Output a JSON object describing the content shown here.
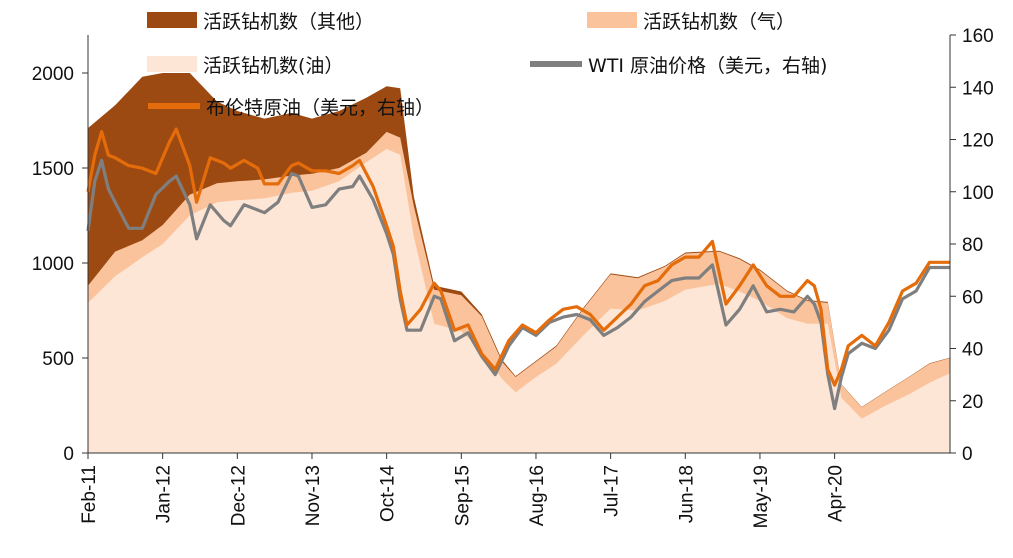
{
  "chart_data": {
    "type": "area",
    "title": "",
    "xlabel": "",
    "ylabel_left": "",
    "ylabel_right": "",
    "left_ylim": [
      0,
      2200
    ],
    "left_yticks": [
      0,
      500,
      1000,
      1500,
      2000
    ],
    "right_ylim": [
      0,
      160
    ],
    "right_yticks": [
      0,
      20,
      40,
      60,
      80,
      100,
      120,
      140,
      160
    ],
    "x_range": [
      "2011-02",
      "2021-09"
    ],
    "x_ticks": [
      {
        "date": "2011-02",
        "label": "Feb-11"
      },
      {
        "date": "2012-01",
        "label": "Jan-12"
      },
      {
        "date": "2012-12",
        "label": "Dec-12"
      },
      {
        "date": "2013-11",
        "label": "Nov-13"
      },
      {
        "date": "2014-10",
        "label": "Oct-14"
      },
      {
        "date": "2015-09",
        "label": "Sep-15"
      },
      {
        "date": "2016-08",
        "label": "Aug-16"
      },
      {
        "date": "2017-07",
        "label": "Jul-17"
      },
      {
        "date": "2018-06",
        "label": "Jun-18"
      },
      {
        "date": "2019-05",
        "label": "May-19"
      },
      {
        "date": "2020-04",
        "label": "Apr-20"
      }
    ],
    "grid": false,
    "legend_position": "top",
    "stacked_area_series": [
      {
        "name": "活跃钻机数(油)",
        "color": "#FDE6D6",
        "axis": "left",
        "points": [
          [
            "2011-02",
            790
          ],
          [
            "2011-06",
            930
          ],
          [
            "2011-10",
            1030
          ],
          [
            "2012-01",
            1100
          ],
          [
            "2012-05",
            1250
          ],
          [
            "2012-09",
            1320
          ],
          [
            "2012-12",
            1330
          ],
          [
            "2013-04",
            1340
          ],
          [
            "2013-08",
            1370
          ],
          [
            "2013-11",
            1380
          ],
          [
            "2014-03",
            1430
          ],
          [
            "2014-07",
            1530
          ],
          [
            "2014-10",
            1600
          ],
          [
            "2014-12",
            1570
          ],
          [
            "2015-02",
            1140
          ],
          [
            "2015-05",
            680
          ],
          [
            "2015-09",
            640
          ],
          [
            "2015-12",
            540
          ],
          [
            "2016-03",
            390
          ],
          [
            "2016-05",
            320
          ],
          [
            "2016-08",
            400
          ],
          [
            "2016-11",
            470
          ],
          [
            "2017-03",
            620
          ],
          [
            "2017-07",
            760
          ],
          [
            "2017-11",
            750
          ],
          [
            "2018-03",
            800
          ],
          [
            "2018-06",
            860
          ],
          [
            "2018-11",
            890
          ],
          [
            "2019-02",
            850
          ],
          [
            "2019-05",
            800
          ],
          [
            "2019-09",
            710
          ],
          [
            "2019-12",
            680
          ],
          [
            "2020-03",
            680
          ],
          [
            "2020-05",
            290
          ],
          [
            "2020-08",
            180
          ],
          [
            "2020-11",
            240
          ],
          [
            "2021-03",
            310
          ],
          [
            "2021-06",
            370
          ],
          [
            "2021-09",
            420
          ]
        ]
      },
      {
        "name": "活跃钻机数（气）",
        "color": "#FBC39C",
        "axis": "left",
        "points": [
          [
            "2011-02",
            880
          ],
          [
            "2011-06",
            1060
          ],
          [
            "2011-10",
            1120
          ],
          [
            "2012-01",
            1200
          ],
          [
            "2012-05",
            1360
          ],
          [
            "2012-09",
            1420
          ],
          [
            "2012-12",
            1430
          ],
          [
            "2013-04",
            1440
          ],
          [
            "2013-08",
            1460
          ],
          [
            "2013-11",
            1470
          ],
          [
            "2014-03",
            1500
          ],
          [
            "2014-07",
            1580
          ],
          [
            "2014-10",
            1690
          ],
          [
            "2014-12",
            1660
          ],
          [
            "2015-02",
            1300
          ],
          [
            "2015-05",
            860
          ],
          [
            "2015-09",
            830
          ],
          [
            "2015-12",
            720
          ],
          [
            "2016-03",
            480
          ],
          [
            "2016-05",
            400
          ],
          [
            "2016-08",
            480
          ],
          [
            "2016-11",
            560
          ],
          [
            "2017-03",
            760
          ],
          [
            "2017-07",
            940
          ],
          [
            "2017-11",
            920
          ],
          [
            "2018-03",
            980
          ],
          [
            "2018-06",
            1050
          ],
          [
            "2018-11",
            1060
          ],
          [
            "2019-02",
            1020
          ],
          [
            "2019-05",
            960
          ],
          [
            "2019-09",
            850
          ],
          [
            "2019-12",
            800
          ],
          [
            "2020-03",
            790
          ],
          [
            "2020-05",
            360
          ],
          [
            "2020-08",
            240
          ],
          [
            "2020-11",
            310
          ],
          [
            "2021-03",
            400
          ],
          [
            "2021-06",
            470
          ],
          [
            "2021-09",
            500
          ]
        ]
      },
      {
        "name": "活跃钻机数（其他）",
        "color": "#9C4A12",
        "axis": "left",
        "points": [
          [
            "2011-02",
            1710
          ],
          [
            "2011-06",
            1830
          ],
          [
            "2011-10",
            1980
          ],
          [
            "2012-01",
            2000
          ],
          [
            "2012-05",
            2000
          ],
          [
            "2012-09",
            1850
          ],
          [
            "2012-12",
            1800
          ],
          [
            "2013-04",
            1760
          ],
          [
            "2013-08",
            1790
          ],
          [
            "2013-11",
            1760
          ],
          [
            "2014-03",
            1800
          ],
          [
            "2014-07",
            1870
          ],
          [
            "2014-10",
            1930
          ],
          [
            "2014-12",
            1920
          ],
          [
            "2015-02",
            1350
          ],
          [
            "2015-05",
            880
          ],
          [
            "2015-09",
            850
          ],
          [
            "2015-12",
            730
          ],
          [
            "2016-03",
            490
          ],
          [
            "2016-05",
            405
          ],
          [
            "2016-08",
            485
          ],
          [
            "2016-11",
            565
          ],
          [
            "2017-03",
            765
          ],
          [
            "2017-07",
            945
          ],
          [
            "2017-11",
            925
          ],
          [
            "2018-03",
            985
          ],
          [
            "2018-06",
            1055
          ],
          [
            "2018-11",
            1065
          ],
          [
            "2019-02",
            1025
          ],
          [
            "2019-05",
            965
          ],
          [
            "2019-09",
            855
          ],
          [
            "2019-12",
            805
          ],
          [
            "2020-03",
            795
          ],
          [
            "2020-05",
            362
          ],
          [
            "2020-08",
            242
          ],
          [
            "2020-11",
            312
          ],
          [
            "2021-03",
            402
          ],
          [
            "2021-06",
            472
          ],
          [
            "2021-09",
            502
          ]
        ]
      }
    ],
    "line_series": [
      {
        "name": "WTI 原油价格（美元，右轴)",
        "color": "#7F7F7F",
        "axis": "right",
        "points": [
          [
            "2011-02",
            85
          ],
          [
            "2011-03",
            104
          ],
          [
            "2011-04",
            112
          ],
          [
            "2011-05",
            101
          ],
          [
            "2011-06",
            96
          ],
          [
            "2011-08",
            86
          ],
          [
            "2011-10",
            86
          ],
          [
            "2011-12",
            99
          ],
          [
            "2012-02",
            104
          ],
          [
            "2012-03",
            106
          ],
          [
            "2012-05",
            95
          ],
          [
            "2012-06",
            82
          ],
          [
            "2012-08",
            95
          ],
          [
            "2012-10",
            89
          ],
          [
            "2012-11",
            87
          ],
          [
            "2013-01",
            95
          ],
          [
            "2013-03",
            93
          ],
          [
            "2013-04",
            92
          ],
          [
            "2013-06",
            96
          ],
          [
            "2013-08",
            107
          ],
          [
            "2013-09",
            106
          ],
          [
            "2013-11",
            94
          ],
          [
            "2014-01",
            95
          ],
          [
            "2014-03",
            101
          ],
          [
            "2014-05",
            102
          ],
          [
            "2014-06",
            106
          ],
          [
            "2014-08",
            97
          ],
          [
            "2014-10",
            84
          ],
          [
            "2014-11",
            76
          ],
          [
            "2014-12",
            59
          ],
          [
            "2015-01",
            47
          ],
          [
            "2015-03",
            47
          ],
          [
            "2015-05",
            60
          ],
          [
            "2015-06",
            59
          ],
          [
            "2015-08",
            43
          ],
          [
            "2015-10",
            46
          ],
          [
            "2015-12",
            37
          ],
          [
            "2016-02",
            30
          ],
          [
            "2016-04",
            41
          ],
          [
            "2016-06",
            48
          ],
          [
            "2016-08",
            45
          ],
          [
            "2016-10",
            50
          ],
          [
            "2016-12",
            52
          ],
          [
            "2017-02",
            53
          ],
          [
            "2017-04",
            51
          ],
          [
            "2017-06",
            45
          ],
          [
            "2017-08",
            48
          ],
          [
            "2017-10",
            52
          ],
          [
            "2017-12",
            58
          ],
          [
            "2018-02",
            62
          ],
          [
            "2018-04",
            66
          ],
          [
            "2018-06",
            67
          ],
          [
            "2018-08",
            67
          ],
          [
            "2018-10",
            72
          ],
          [
            "2018-12",
            49
          ],
          [
            "2019-02",
            55
          ],
          [
            "2019-04",
            64
          ],
          [
            "2019-06",
            54
          ],
          [
            "2019-08",
            55
          ],
          [
            "2019-10",
            54
          ],
          [
            "2019-12",
            60
          ],
          [
            "2020-01",
            57
          ],
          [
            "2020-02",
            50
          ],
          [
            "2020-03",
            30
          ],
          [
            "2020-04",
            17
          ],
          [
            "2020-05",
            29
          ],
          [
            "2020-06",
            38
          ],
          [
            "2020-08",
            42
          ],
          [
            "2020-10",
            40
          ],
          [
            "2020-12",
            47
          ],
          [
            "2021-02",
            59
          ],
          [
            "2021-04",
            62
          ],
          [
            "2021-06",
            71
          ],
          [
            "2021-09",
            71
          ]
        ]
      },
      {
        "name": "布伦特原油（美元，右轴）",
        "color": "#E46C0A",
        "axis": "right",
        "points": [
          [
            "2011-02",
            100
          ],
          [
            "2011-03",
            114
          ],
          [
            "2011-04",
            123
          ],
          [
            "2011-05",
            114
          ],
          [
            "2011-06",
            113
          ],
          [
            "2011-08",
            110
          ],
          [
            "2011-10",
            109
          ],
          [
            "2011-12",
            107
          ],
          [
            "2012-02",
            119
          ],
          [
            "2012-03",
            124
          ],
          [
            "2012-05",
            110
          ],
          [
            "2012-06",
            96
          ],
          [
            "2012-08",
            113
          ],
          [
            "2012-10",
            111
          ],
          [
            "2012-11",
            109
          ],
          [
            "2013-01",
            112
          ],
          [
            "2013-03",
            109
          ],
          [
            "2013-04",
            103
          ],
          [
            "2013-06",
            103
          ],
          [
            "2013-08",
            110
          ],
          [
            "2013-09",
            111
          ],
          [
            "2013-11",
            108
          ],
          [
            "2014-01",
            108
          ],
          [
            "2014-03",
            107
          ],
          [
            "2014-05",
            110
          ],
          [
            "2014-06",
            112
          ],
          [
            "2014-08",
            102
          ],
          [
            "2014-10",
            87
          ],
          [
            "2014-11",
            79
          ],
          [
            "2014-12",
            62
          ],
          [
            "2015-01",
            49
          ],
          [
            "2015-03",
            55
          ],
          [
            "2015-05",
            65
          ],
          [
            "2015-06",
            62
          ],
          [
            "2015-08",
            47
          ],
          [
            "2015-10",
            49
          ],
          [
            "2015-12",
            38
          ],
          [
            "2016-02",
            32
          ],
          [
            "2016-04",
            43
          ],
          [
            "2016-06",
            49
          ],
          [
            "2016-08",
            46
          ],
          [
            "2016-10",
            51
          ],
          [
            "2016-12",
            55
          ],
          [
            "2017-02",
            56
          ],
          [
            "2017-04",
            53
          ],
          [
            "2017-06",
            47
          ],
          [
            "2017-08",
            52
          ],
          [
            "2017-10",
            57
          ],
          [
            "2017-12",
            64
          ],
          [
            "2018-02",
            66
          ],
          [
            "2018-04",
            72
          ],
          [
            "2018-06",
            75
          ],
          [
            "2018-08",
            75
          ],
          [
            "2018-10",
            81
          ],
          [
            "2018-12",
            57
          ],
          [
            "2019-02",
            64
          ],
          [
            "2019-04",
            72
          ],
          [
            "2019-06",
            64
          ],
          [
            "2019-08",
            60
          ],
          [
            "2019-10",
            60
          ],
          [
            "2019-12",
            66
          ],
          [
            "2020-01",
            64
          ],
          [
            "2020-02",
            55
          ],
          [
            "2020-03",
            32
          ],
          [
            "2020-04",
            26
          ],
          [
            "2020-05",
            32
          ],
          [
            "2020-06",
            41
          ],
          [
            "2020-08",
            45
          ],
          [
            "2020-10",
            41
          ],
          [
            "2020-12",
            50
          ],
          [
            "2021-02",
            62
          ],
          [
            "2021-04",
            65
          ],
          [
            "2021-06",
            73
          ],
          [
            "2021-09",
            73
          ]
        ]
      }
    ],
    "legend_entries": [
      {
        "name": "活跃钻机数（其他）",
        "color": "#9C4A12",
        "kind": "box"
      },
      {
        "name": "活跃钻机数（气）",
        "color": "#FBC39C",
        "kind": "box"
      },
      {
        "name": "活跃钻机数(油）",
        "color": "#FDE6D6",
        "kind": "box"
      },
      {
        "name": "WTI 原油价格（美元，右轴)",
        "color": "#7F7F7F",
        "kind": "line"
      },
      {
        "name": "布伦特原油（美元，右轴）",
        "color": "#E46C0A",
        "kind": "line"
      }
    ]
  }
}
